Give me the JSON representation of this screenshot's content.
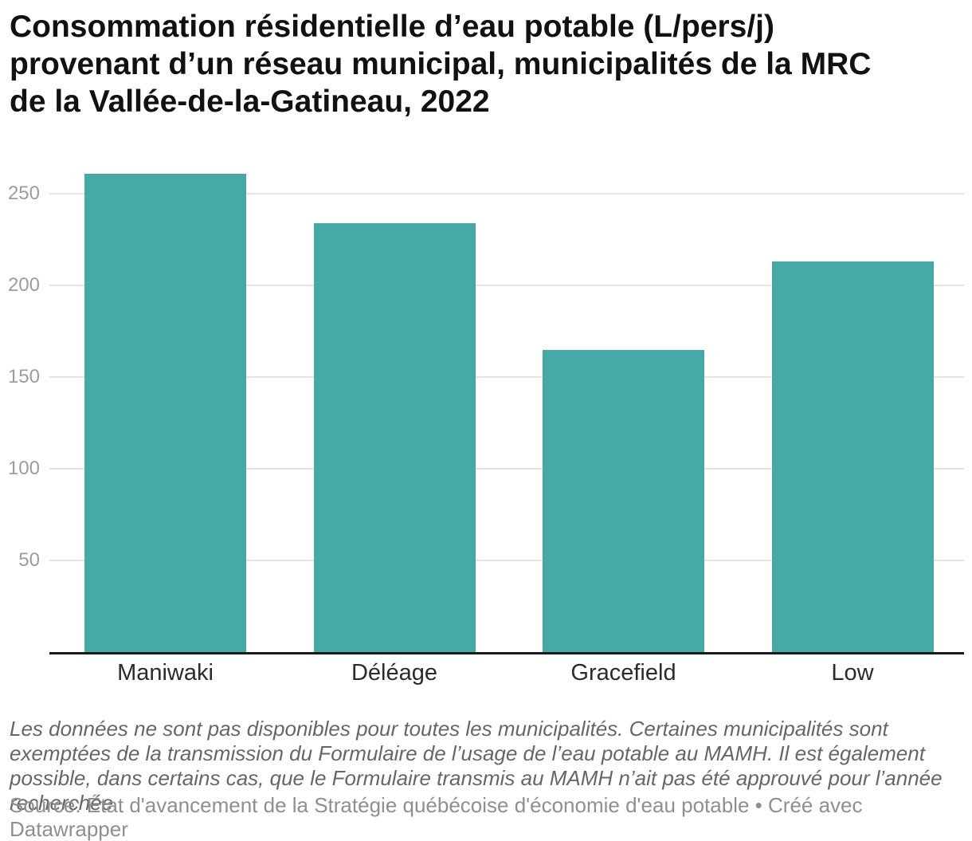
{
  "header": {
    "title": "Consommation résidentielle d’eau potable (L/pers/j) provenant d’un réseau municipal, municipalités de la MRC de la Vallée-de-la-Gatineau, 2022",
    "title_lines": [
      "Consommation résidentielle d’eau potable (L/pers/j)",
      "provenant d’un réseau municipal, municipalités de la MRC",
      "de la Vallée-de-la-Gatineau, 2022"
    ]
  },
  "chart_data": {
    "type": "bar",
    "title": "Consommation résidentielle d’eau potable (L/pers/j) provenant d’un réseau municipal, municipalités de la MRC de la Vallée-de-la-Gatineau, 2022",
    "categories": [
      "Maniwaki",
      "Déléage",
      "Gracefield",
      "Low"
    ],
    "values": [
      261,
      234,
      165,
      213
    ],
    "unit": "L/pers/j",
    "xlabel": "",
    "ylabel": "",
    "ylim": [
      0,
      269
    ],
    "yticks": [
      50,
      100,
      150,
      200,
      250
    ],
    "grid": true,
    "legend_position": "none",
    "bar_color": "#46a9a6"
  },
  "colors": {
    "bar": "#46a9a6",
    "gridline": "#e4e4e4",
    "axis_line": "#191919",
    "ytick_label": "#9c9c9c",
    "xtick_label": "#2b2b2b",
    "notes_text": "#666666",
    "source_text": "#8f8f8f",
    "title_text": "#111111",
    "background": "#ffffff"
  },
  "footer": {
    "notes": "Les données ne sont pas disponibles pour toutes les municipalités. Certaines municipalités sont exemptées de la transmission du Formulaire de l’usage de l’eau potable au MAMH. Il est également possible, dans certains cas, que le Formulaire transmis au MAMH n’ait pas été approuvé pour l’année recherchée.",
    "source_prefix": "Source:",
    "source_text": "État d'avancement de la Stratégie québécoise d'économie d'eau potable",
    "separator": "•",
    "credit": "Créé avec Datawrapper"
  }
}
